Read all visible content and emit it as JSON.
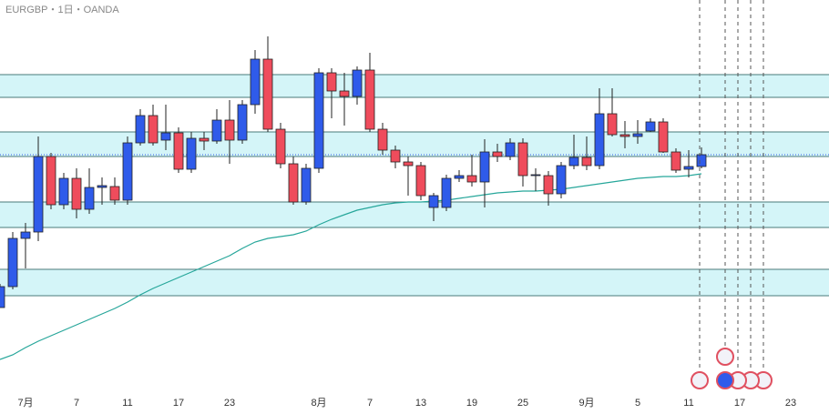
{
  "chart_data": {
    "type": "candlestick",
    "title": "EURGBP・1日・OANDA",
    "categories": [
      null,
      null,
      "7月",
      null,
      null,
      null,
      "7",
      null,
      null,
      null,
      "11",
      null,
      null,
      null,
      "17",
      null,
      null,
      null,
      "23",
      null,
      null,
      null,
      null,
      null,
      null,
      "8月",
      null,
      null,
      null,
      "7",
      null,
      null,
      null,
      "13",
      null,
      null,
      null,
      "19",
      null,
      null,
      null,
      "25",
      null,
      null,
      null,
      null,
      "9月",
      null,
      null,
      null,
      "5",
      null,
      null,
      null,
      "11",
      null,
      null,
      null,
      "17",
      null,
      null,
      null,
      "23",
      null,
      null,
      null
    ],
    "open": [
      117,
      140,
      193,
      200,
      283,
      230,
      259,
      225,
      249,
      250,
      235,
      298,
      328,
      301,
      309,
      269,
      303,
      300,
      323,
      301,
      340,
      390,
      313,
      275,
      233,
      270,
      375,
      355,
      349,
      378,
      313,
      290,
      277,
      273,
      227,
      227,
      259,
      262,
      255,
      288,
      283,
      298,
      262,
      262,
      242,
      273,
      282,
      273,
      330,
      307,
      305,
      311,
      321,
      288,
      269,
      272,
      null,
      null,
      null,
      null,
      null,
      null,
      null,
      null,
      null,
      null
    ],
    "high": [
      143,
      200,
      210,
      305,
      287,
      265,
      270,
      270,
      260,
      260,
      305,
      335,
      340,
      340,
      315,
      310,
      310,
      335,
      345,
      345,
      400,
      415,
      320,
      283,
      275,
      380,
      380,
      375,
      382,
      397,
      320,
      295,
      283,
      277,
      243,
      263,
      268,
      285,
      302,
      297,
      303,
      303,
      270,
      267,
      277,
      307,
      305,
      358,
      358,
      322,
      323,
      325,
      325,
      292,
      290,
      293,
      null,
      null,
      null,
      null,
      null,
      null,
      null,
      null,
      null,
      null
    ],
    "low": [
      117,
      137,
      160,
      190,
      225,
      225,
      215,
      220,
      230,
      230,
      230,
      295,
      295,
      290,
      265,
      265,
      290,
      297,
      275,
      297,
      330,
      310,
      270,
      230,
      230,
      265,
      325,
      317,
      340,
      310,
      285,
      270,
      240,
      235,
      212,
      223,
      255,
      250,
      227,
      277,
      279,
      250,
      245,
      229,
      237,
      269,
      268,
      269,
      305,
      292,
      297,
      310,
      287,
      265,
      260,
      270,
      null,
      null,
      null,
      null,
      null,
      null,
      null,
      null,
      null,
      null
    ],
    "close": [
      140,
      193,
      200,
      283,
      230,
      259,
      225,
      249,
      251,
      235,
      298,
      328,
      298,
      309,
      269,
      303,
      300,
      323,
      301,
      340,
      390,
      313,
      275,
      233,
      270,
      375,
      355,
      349,
      378,
      313,
      290,
      277,
      273,
      240,
      240,
      259,
      262,
      255,
      288,
      283,
      298,
      262,
      263,
      242,
      273,
      282,
      273,
      330,
      307,
      305,
      308,
      321,
      288,
      268,
      272,
      285,
      null,
      null,
      null,
      null,
      null,
      null,
      null,
      null,
      null,
      null
    ],
    "ma": [
      60,
      65,
      73,
      80,
      86,
      92,
      98,
      104,
      110,
      116,
      123,
      131,
      138,
      144,
      150,
      156,
      162,
      168,
      174,
      182,
      189,
      193,
      195,
      197,
      201,
      208,
      214,
      219,
      224,
      227,
      230,
      232,
      233,
      233,
      234,
      235,
      237,
      239,
      241,
      243,
      244,
      245,
      245,
      246,
      247,
      249,
      251,
      253,
      255,
      257,
      259,
      260,
      261,
      261,
      262,
      264,
      null,
      null,
      null,
      null,
      null,
      null,
      null,
      null,
      null,
      null
    ],
    "zones": [
      [
        348,
        373
      ],
      [
        283,
        310
      ],
      [
        205,
        233
      ],
      [
        130,
        159
      ]
    ],
    "up_color": "#2f5bea",
    "down_color": "#ef4c5c",
    "ma_color": "#26a69a",
    "zone_color": "#d4f5f8",
    "ylim": [
      0,
      455
    ]
  }
}
